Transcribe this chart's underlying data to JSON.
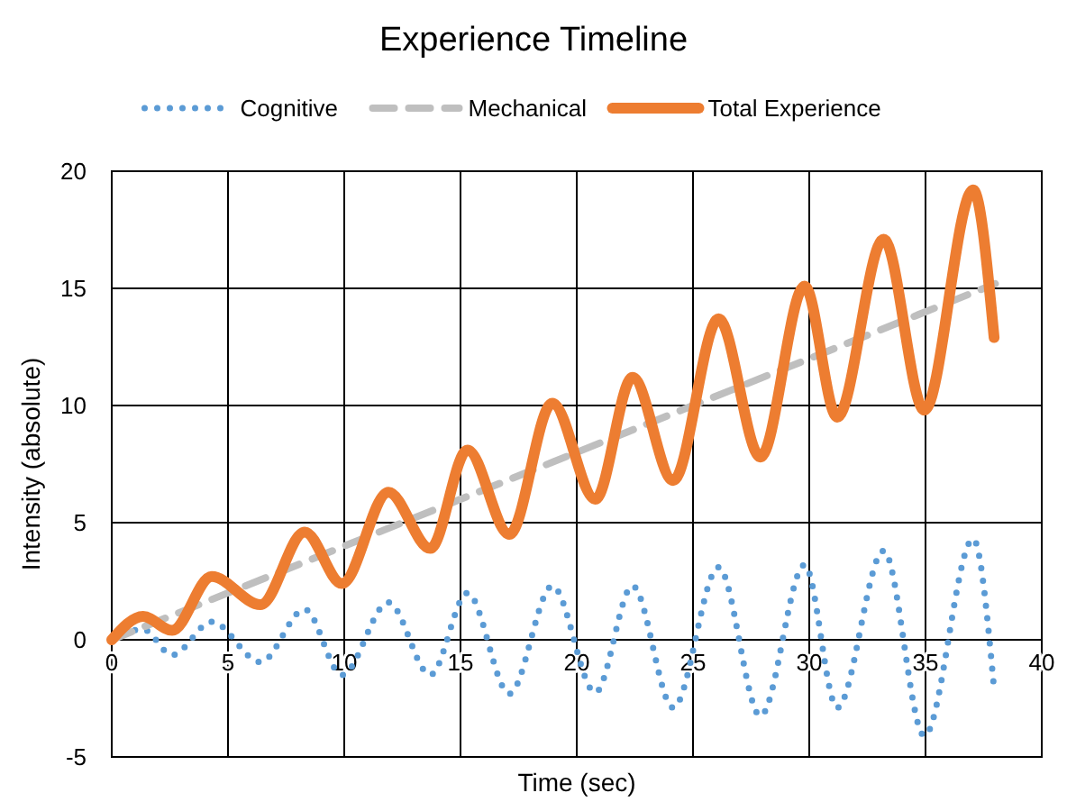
{
  "chart_data": {
    "type": "line",
    "title": "Experience Timeline",
    "xlabel": "Time (sec)",
    "ylabel": "Intensity (absolute)",
    "xlim": [
      0,
      40
    ],
    "ylim": [
      -5,
      20
    ],
    "xticks": [
      0,
      5,
      10,
      15,
      20,
      25,
      30,
      35,
      40
    ],
    "yticks": [
      -5,
      0,
      5,
      10,
      15,
      20
    ],
    "grid": true,
    "legend": "top",
    "marker": "none",
    "series": [
      {
        "name": "Cognitive",
        "color": "#5b9bd5",
        "line_style": "dotted",
        "x": [
          0,
          1.35,
          2.6,
          4.3,
          6.4,
          8.3,
          9.9,
          11.9,
          13.7,
          15.3,
          17.1,
          18.95,
          20.8,
          22.4,
          24.15,
          26.1,
          27.9,
          29.8,
          31.2,
          33.2,
          34.95,
          37.05,
          37.95
        ],
        "values": [
          0,
          0.45,
          -0.65,
          0.77,
          -0.95,
          1.3,
          -1.5,
          1.6,
          -1.5,
          2.0,
          -2.3,
          2.3,
          -2.25,
          2.3,
          -2.9,
          3.1,
          -3.25,
          3.2,
          -2.9,
          3.8,
          -4.1,
          4.3,
          -2.1
        ]
      },
      {
        "name": "Mechanical",
        "color": "#bfbfbf",
        "line_style": "dashed",
        "x": [
          0,
          38
        ],
        "values": [
          0,
          15.2
        ]
      },
      {
        "name": "Total Experience",
        "color": "#ed7d31",
        "line_style": "solid",
        "x": [
          0,
          1.35,
          2.6,
          4.3,
          6.4,
          8.3,
          9.9,
          11.9,
          13.7,
          15.3,
          17.1,
          18.95,
          20.8,
          22.4,
          24.15,
          26.1,
          27.9,
          29.8,
          31.2,
          33.2,
          34.95,
          37.05,
          37.95
        ],
        "values": [
          0,
          1.0,
          0.4,
          2.7,
          1.5,
          4.6,
          2.4,
          6.3,
          3.9,
          8.1,
          4.5,
          10.1,
          6.0,
          11.2,
          6.8,
          13.7,
          7.8,
          15.1,
          9.5,
          17.1,
          9.8,
          19.2,
          12.9
        ]
      }
    ]
  }
}
